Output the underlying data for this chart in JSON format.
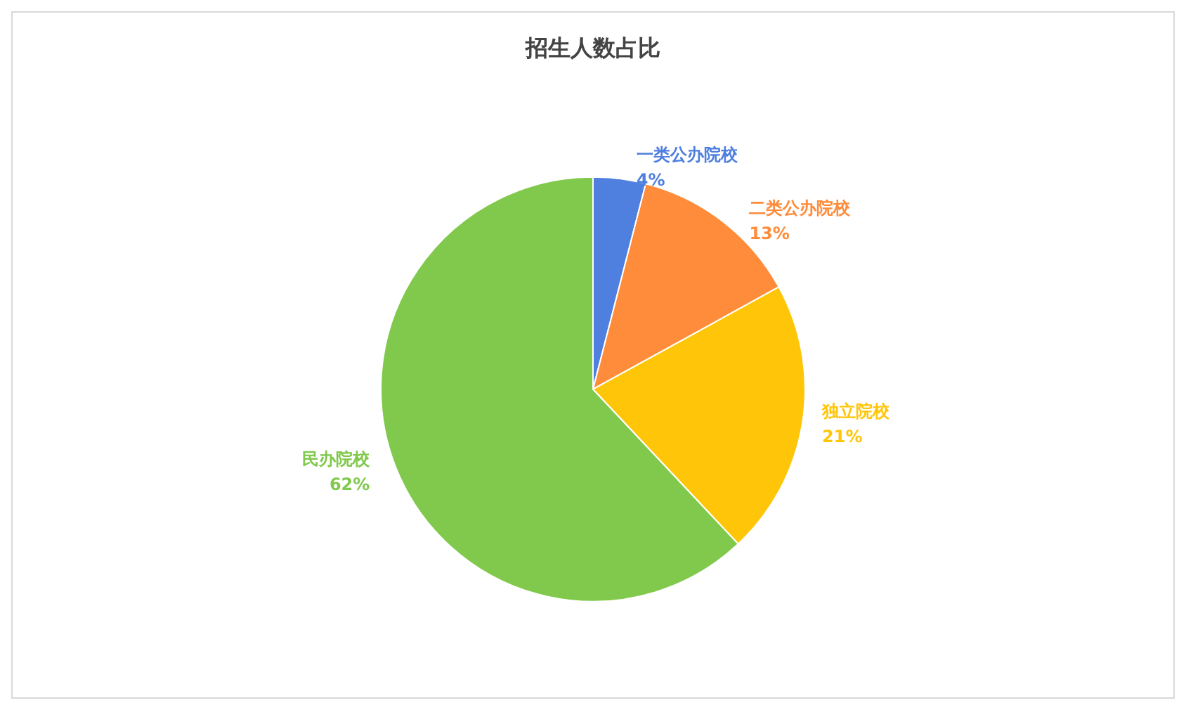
{
  "chart_data": {
    "type": "pie",
    "title": "招生人数占比",
    "categories": [
      "一类公办院校",
      "二类公办院校",
      "独立院校",
      "民办院校"
    ],
    "values": [
      4,
      13,
      21,
      62
    ],
    "colors": [
      "#4f7fdf",
      "#ff8c3a",
      "#ffc609",
      "#80c94c"
    ],
    "value_labels": [
      "4%",
      "13%",
      "21%",
      "62%"
    ],
    "legend": false
  }
}
